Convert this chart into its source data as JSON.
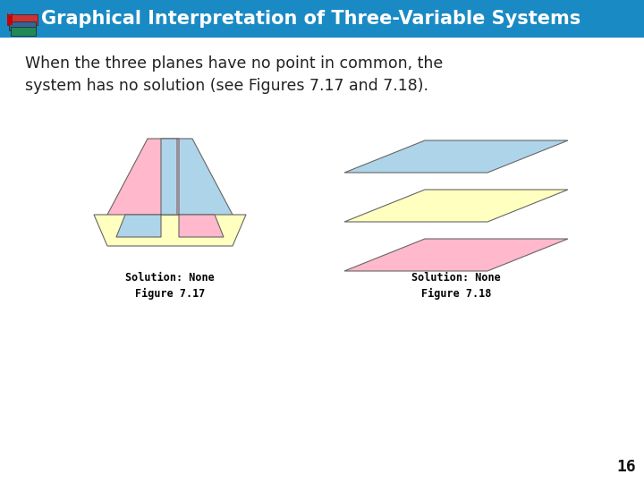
{
  "title": "Graphical Interpretation of Three-Variable Systems",
  "title_bg_color": "#1a8ac4",
  "title_text_color": "#ffffff",
  "body_text": "When the three planes have no point in common, the\nsystem has no solution (see Figures 7.17 and 7.18).",
  "body_text_color": "#222222",
  "bg_color": "#ffffff",
  "label1": "Solution: None",
  "label2": "Solution: None",
  "fig_label1": "Figure 7.17",
  "fig_label2": "Figure 7.18",
  "page_number": "16",
  "plane_yellow": "#ffffc0",
  "plane_pink": "#ffb8cc",
  "plane_blue": "#aed4ea",
  "plane_outline": "#666666",
  "book_colors": [
    "#2e8b57",
    "#4682b4",
    "#cc2222"
  ]
}
